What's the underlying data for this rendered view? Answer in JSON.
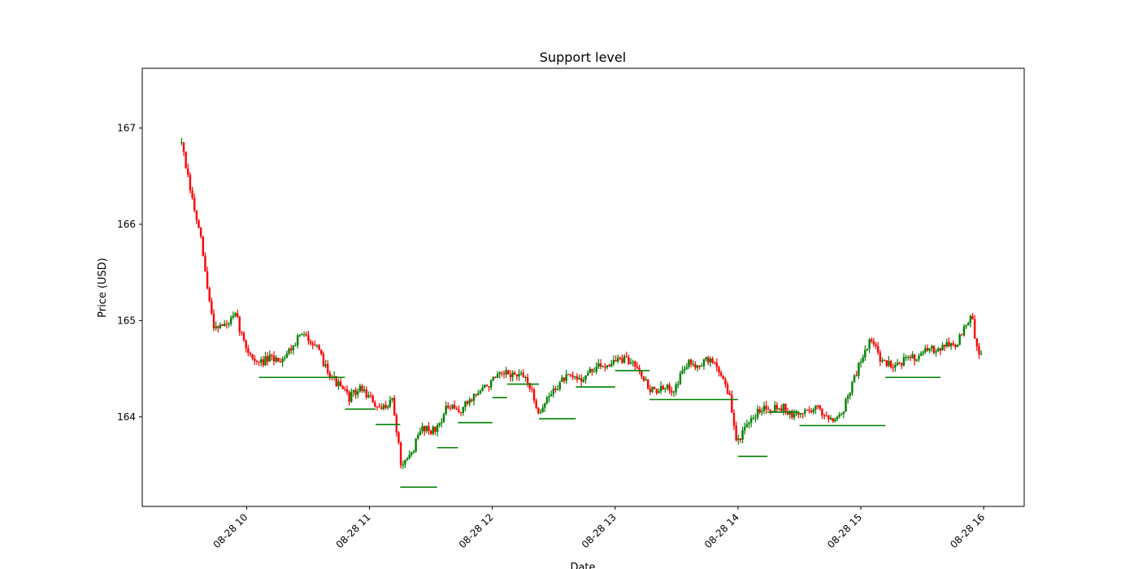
{
  "chart_data": {
    "type": "ohlc",
    "title": "Support level",
    "xlabel": "Date",
    "ylabel": "Price (USD)",
    "date": "08-28",
    "xlim_hours": [
      9.15,
      16.33
    ],
    "ylim": [
      163.07,
      167.62
    ],
    "x_ticks": [
      {
        "label": "08-28 10",
        "hour": 10
      },
      {
        "label": "08-28 11",
        "hour": 11
      },
      {
        "label": "08-28 12",
        "hour": 12
      },
      {
        "label": "08-28 13",
        "hour": 13
      },
      {
        "label": "08-28 14",
        "hour": 14
      },
      {
        "label": "08-28 15",
        "hour": 15
      },
      {
        "label": "08-28 16",
        "hour": 16
      }
    ],
    "y_ticks": [
      164,
      165,
      166,
      167
    ],
    "colors": {
      "up": "#008000",
      "down": "#ff0000",
      "support": "#008000"
    },
    "anchors": [
      [
        9.47,
        167.05
      ],
      [
        9.5,
        166.75
      ],
      [
        9.55,
        166.4
      ],
      [
        9.6,
        166.1
      ],
      [
        9.65,
        165.8
      ],
      [
        9.7,
        165.3
      ],
      [
        9.75,
        164.95
      ],
      [
        9.85,
        164.95
      ],
      [
        9.93,
        165.05
      ],
      [
        10.0,
        164.75
      ],
      [
        10.1,
        164.55
      ],
      [
        10.2,
        164.6
      ],
      [
        10.3,
        164.6
      ],
      [
        10.4,
        164.75
      ],
      [
        10.45,
        164.85
      ],
      [
        10.55,
        164.8
      ],
      [
        10.65,
        164.55
      ],
      [
        10.75,
        164.35
      ],
      [
        10.85,
        164.2
      ],
      [
        10.95,
        164.3
      ],
      [
        11.05,
        164.15
      ],
      [
        11.1,
        164.05
      ],
      [
        11.2,
        164.2
      ],
      [
        11.25,
        163.75
      ],
      [
        11.28,
        163.45
      ],
      [
        11.35,
        163.6
      ],
      [
        11.45,
        163.9
      ],
      [
        11.55,
        163.85
      ],
      [
        11.65,
        164.1
      ],
      [
        11.75,
        164.05
      ],
      [
        11.85,
        164.2
      ],
      [
        11.95,
        164.3
      ],
      [
        12.05,
        164.4
      ],
      [
        12.15,
        164.45
      ],
      [
        12.3,
        164.4
      ],
      [
        12.35,
        164.2
      ],
      [
        12.4,
        164.05
      ],
      [
        12.5,
        164.25
      ],
      [
        12.6,
        164.4
      ],
      [
        12.75,
        164.4
      ],
      [
        12.85,
        164.5
      ],
      [
        12.95,
        164.55
      ],
      [
        13.05,
        164.6
      ],
      [
        13.2,
        164.55
      ],
      [
        13.25,
        164.4
      ],
      [
        13.3,
        164.28
      ],
      [
        13.4,
        164.28
      ],
      [
        13.5,
        164.3
      ],
      [
        13.6,
        164.55
      ],
      [
        13.7,
        164.55
      ],
      [
        13.8,
        164.6
      ],
      [
        13.9,
        164.4
      ],
      [
        13.95,
        164.2
      ],
      [
        14.0,
        163.75
      ],
      [
        14.1,
        163.9
      ],
      [
        14.2,
        164.1
      ],
      [
        14.3,
        164.1
      ],
      [
        14.4,
        164.1
      ],
      [
        14.45,
        164.0
      ],
      [
        14.55,
        164.05
      ],
      [
        14.65,
        164.1
      ],
      [
        14.75,
        164.0
      ],
      [
        14.85,
        164.0
      ],
      [
        14.95,
        164.35
      ],
      [
        15.05,
        164.7
      ],
      [
        15.1,
        164.8
      ],
      [
        15.2,
        164.55
      ],
      [
        15.3,
        164.55
      ],
      [
        15.4,
        164.6
      ],
      [
        15.5,
        164.65
      ],
      [
        15.6,
        164.7
      ],
      [
        15.7,
        164.75
      ],
      [
        15.8,
        164.75
      ],
      [
        15.85,
        164.9
      ],
      [
        15.92,
        165.05
      ],
      [
        15.95,
        164.75
      ],
      [
        16.0,
        164.65
      ]
    ],
    "start_hour": 9.47,
    "end_hour": 15.98,
    "bar_spacing_hours": 0.0175,
    "seed": 7,
    "support_levels": [
      {
        "price": 164.41,
        "x0": 10.1,
        "x1": 10.8
      },
      {
        "price": 164.08,
        "x0": 10.8,
        "x1": 11.05
      },
      {
        "price": 163.92,
        "x0": 11.05,
        "x1": 11.25
      },
      {
        "price": 163.27,
        "x0": 11.25,
        "x1": 11.55
      },
      {
        "price": 163.68,
        "x0": 11.55,
        "x1": 11.72
      },
      {
        "price": 163.94,
        "x0": 11.72,
        "x1": 12.0
      },
      {
        "price": 164.2,
        "x0": 12.0,
        "x1": 12.12
      },
      {
        "price": 164.34,
        "x0": 12.12,
        "x1": 12.38
      },
      {
        "price": 163.98,
        "x0": 12.38,
        "x1": 12.68
      },
      {
        "price": 164.31,
        "x0": 12.68,
        "x1": 13.0
      },
      {
        "price": 164.48,
        "x0": 13.0,
        "x1": 13.28
      },
      {
        "price": 164.18,
        "x0": 13.28,
        "x1": 14.0
      },
      {
        "price": 163.59,
        "x0": 14.0,
        "x1": 14.24
      },
      {
        "price": 164.05,
        "x0": 14.24,
        "x1": 14.5
      },
      {
        "price": 163.91,
        "x0": 14.5,
        "x1": 15.2
      },
      {
        "price": 164.41,
        "x0": 15.2,
        "x1": 15.65
      }
    ]
  }
}
